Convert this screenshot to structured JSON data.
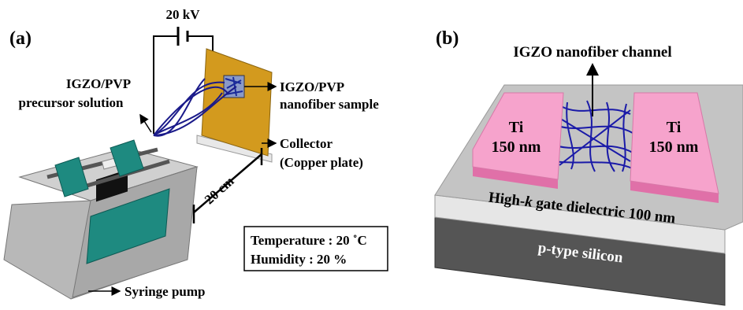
{
  "panel_a": {
    "label": "(a)",
    "voltage": "20 kV",
    "precursor": [
      "IGZO/PVP",
      "precursor solution"
    ],
    "sample": [
      "IGZO/PVP",
      "nanofiber sample"
    ],
    "collector": [
      "Collector",
      "(Copper plate)"
    ],
    "distance": "20 cm",
    "conditions": [
      "Temperature : 20 ˚C",
      "Humidity : 20 %"
    ],
    "pump": "Syringe pump"
  },
  "panel_b": {
    "label": "(b)",
    "channel": "IGZO nanofiber channel",
    "electrodes": [
      {
        "metal": "Ti",
        "thickness": "150 nm"
      },
      {
        "metal": "Ti",
        "thickness": "150 nm"
      }
    ],
    "dielectric": [
      "High-",
      "k",
      " gate dielectric 100 nm"
    ],
    "substrate": "p-type silicon"
  }
}
